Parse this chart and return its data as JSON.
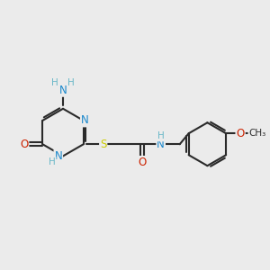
{
  "bg_color": "#ebebeb",
  "bond_color": "#2a2a2a",
  "N_color": "#1a88cc",
  "O_color": "#cc2200",
  "S_color": "#cccc00",
  "H_color": "#6ab8c8",
  "figsize": [
    3.0,
    3.0
  ],
  "dpi": 100,
  "xlim": [
    0,
    10
  ],
  "ylim": [
    0,
    10
  ]
}
